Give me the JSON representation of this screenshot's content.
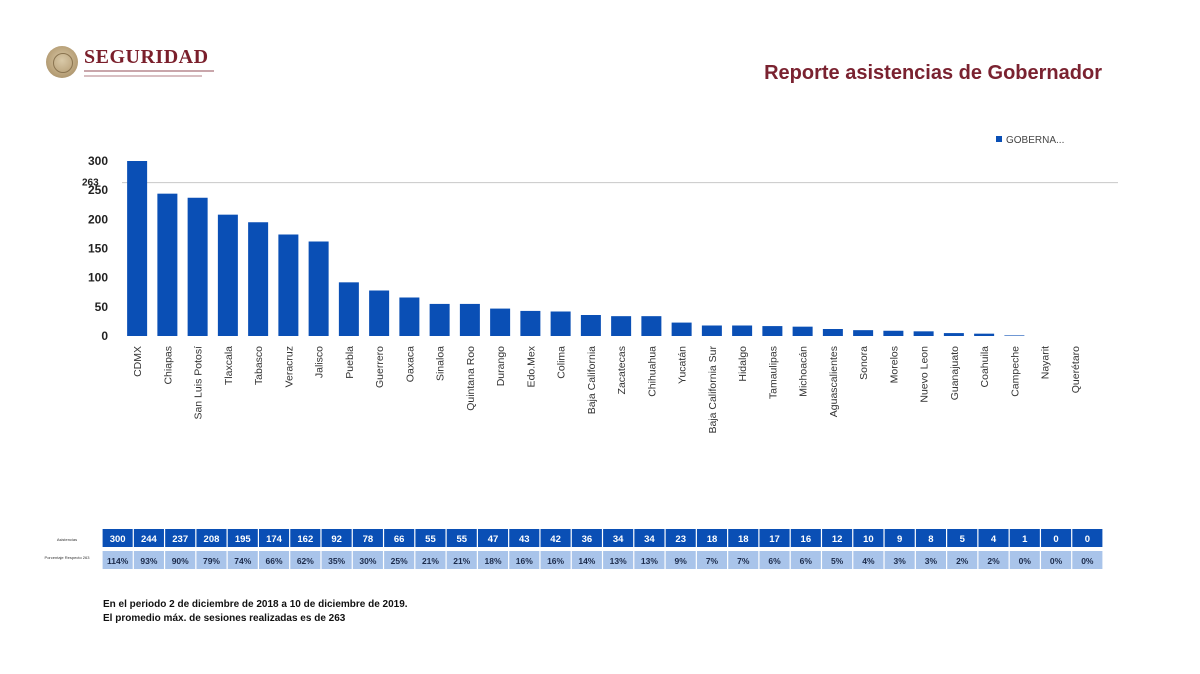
{
  "header": {
    "logo_text": "SEGURIDAD",
    "report_title": "Reporte asistencias de Gobernador"
  },
  "colors": {
    "bar": "#0a4fb5",
    "title": "#7a2230",
    "row1_bg": "#0a4fb5",
    "row2_bg": "#a9c4ea"
  },
  "chart_data": {
    "type": "bar",
    "categories": [
      "CDMX",
      "Chiapas",
      "San Luis Potosí",
      "Tlaxcala",
      "Tabasco",
      "Veracruz",
      "Jalisco",
      "Puebla",
      "Guerrero",
      "Oaxaca",
      "Sinaloa",
      "Quintana Roo",
      "Durango",
      "Edo.Mex",
      "Colima",
      "Baja California",
      "Zacatecas",
      "Chihuahua",
      "Yucatán",
      "Baja California Sur",
      "Hidalgo",
      "Tamaulipas",
      "Michoacán",
      "Aguascalientes",
      "Sonora",
      "Morelos",
      "Nuevo Leon",
      "Guanajuato",
      "Coahuila",
      "Campeche",
      "Nayarit",
      "Querétaro"
    ],
    "series": [
      {
        "name": "GOBERNA...",
        "values": [
          300,
          244,
          237,
          208,
          195,
          174,
          162,
          92,
          78,
          66,
          55,
          55,
          47,
          43,
          42,
          36,
          34,
          34,
          23,
          18,
          18,
          17,
          16,
          12,
          10,
          9,
          8,
          5,
          4,
          1,
          0,
          0
        ]
      }
    ],
    "percentages": [
      "114%",
      "93%",
      "90%",
      "79%",
      "74%",
      "66%",
      "62%",
      "35%",
      "30%",
      "25%",
      "21%",
      "21%",
      "18%",
      "16%",
      "16%",
      "14%",
      "13%",
      "13%",
      "9%",
      "7%",
      "7%",
      "6%",
      "6%",
      "5%",
      "4%",
      "3%",
      "3%",
      "2%",
      "2%",
      "0%",
      "0%",
      "0%"
    ],
    "yticks": [
      0,
      50,
      100,
      150,
      200,
      250,
      300
    ],
    "ylim": [
      0,
      310
    ],
    "reference_line": 263,
    "reference_label": "263",
    "legend": {
      "position": "top-right"
    },
    "table_row_labels": [
      "Asistencias",
      "Porcentaje Respecto 263"
    ]
  },
  "notes": [
    "En el periodo 2 de diciembre de 2018 a 10 de diciembre de 2019.",
    "El promedio máx. de sesiones realizadas es de 263"
  ]
}
